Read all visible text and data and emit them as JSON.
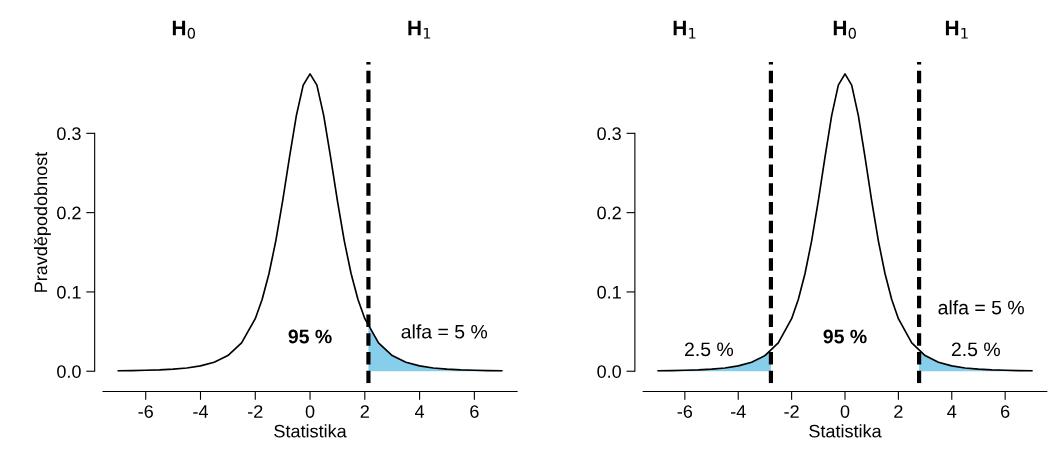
{
  "chart_data": [
    {
      "type": "line",
      "xlabel": "Statistika",
      "ylabel": "Pravděpodobnost",
      "xlim": [
        -7.56,
        7.56
      ],
      "ylim": [
        -0.015,
        0.39
      ],
      "xticks": [
        -6,
        -4,
        -2,
        0,
        2,
        4,
        6
      ],
      "yticks": [
        {
          "value": 0,
          "label": "0.0"
        },
        0.1,
        0.2,
        0.3
      ],
      "series": [
        {
          "color": "#000000",
          "x": [
            -7,
            -6.5,
            -6,
            -5.5,
            -5,
            -4.5,
            -4,
            -3.5,
            -3,
            -2.5,
            -2,
            -1.75,
            -1.5,
            -1.25,
            -1,
            -0.75,
            -0.5,
            -0.25,
            0,
            0.25,
            0.5,
            0.75,
            1,
            1.25,
            1.5,
            1.75,
            2,
            2.5,
            3,
            3.5,
            4,
            4.5,
            5,
            5.5,
            6,
            6.5,
            7
          ],
          "values": [
            0.0006,
            0.0008,
            0.0012,
            0.0017,
            0.0027,
            0.0041,
            0.0067,
            0.0113,
            0.0197,
            0.0357,
            0.0663,
            0.0905,
            0.1229,
            0.1644,
            0.2147,
            0.2699,
            0.3223,
            0.3608,
            0.375,
            0.3608,
            0.3223,
            0.2699,
            0.2147,
            0.1644,
            0.1229,
            0.0905,
            0.0663,
            0.0357,
            0.0197,
            0.0113,
            0.0067,
            0.0041,
            0.0027,
            0.0017,
            0.0012,
            0.0008,
            0.0006
          ]
        },
        {
          "type": "area",
          "color": "#87ceeb",
          "x": [
            2.132,
            2.5,
            3,
            3.5,
            4,
            4.5,
            5,
            5.5,
            6,
            6.5,
            7
          ],
          "values": [
            0.0562,
            0.0357,
            0.0197,
            0.0113,
            0.0067,
            0.0041,
            0.0027,
            0.0017,
            0.0012,
            0.0008,
            0.0006
          ]
        }
      ],
      "ref_lines": [
        {
          "axis": "x",
          "value": 2.132,
          "color": "#000000",
          "line_style": "dashed"
        }
      ],
      "annotations": [
        "95 %",
        "alfa = 5 %",
        "H$_{0}$",
        "H$_{1}$"
      ]
    },
    {
      "type": "line",
      "xlabel": "Statistika",
      "xlim": [
        -7.56,
        7.56
      ],
      "ylim": [
        -0.015,
        0.39
      ],
      "xticks": [
        -6,
        -4,
        -2,
        0,
        2,
        4,
        6
      ],
      "yticks": [
        {
          "value": 0,
          "label": "0.0"
        },
        0.1,
        0.2,
        0.3
      ],
      "series": [
        {
          "color": "#000000",
          "x": [
            -7,
            -6.5,
            -6,
            -5.5,
            -5,
            -4.5,
            -4,
            -3.5,
            -3,
            -2.5,
            -2,
            -1.75,
            -1.5,
            -1.25,
            -1,
            -0.75,
            -0.5,
            -0.25,
            0,
            0.25,
            0.5,
            0.75,
            1,
            1.25,
            1.5,
            1.75,
            2,
            2.5,
            3,
            3.5,
            4,
            4.5,
            5,
            5.5,
            6,
            6.5,
            7
          ],
          "values": [
            0.0006,
            0.0008,
            0.0012,
            0.0017,
            0.0027,
            0.0041,
            0.0067,
            0.0113,
            0.0197,
            0.0357,
            0.0663,
            0.0905,
            0.1229,
            0.1644,
            0.2147,
            0.2699,
            0.3223,
            0.3608,
            0.375,
            0.3608,
            0.3223,
            0.2699,
            0.2147,
            0.1644,
            0.1229,
            0.0905,
            0.0663,
            0.0357,
            0.0197,
            0.0113,
            0.0067,
            0.0041,
            0.0027,
            0.0017,
            0.0012,
            0.0008,
            0.0006
          ]
        },
        {
          "type": "area",
          "color": "#87ceeb",
          "x": [
            -7,
            -6.5,
            -6,
            -5.5,
            -5,
            -4.5,
            -4,
            -3.5,
            -3,
            -2.776
          ],
          "values": [
            0.0006,
            0.0008,
            0.0012,
            0.0017,
            0.0027,
            0.0041,
            0.0067,
            0.0113,
            0.0197,
            0.0256
          ]
        },
        {
          "type": "area",
          "color": "#87ceeb",
          "x": [
            2.776,
            3,
            3.5,
            4,
            4.5,
            5,
            5.5,
            6,
            6.5,
            7
          ],
          "values": [
            0.0256,
            0.0197,
            0.0113,
            0.0067,
            0.0041,
            0.0027,
            0.0017,
            0.0012,
            0.0008,
            0.0006
          ]
        }
      ],
      "ref_lines": [
        {
          "axis": "x",
          "value": -2.776,
          "color": "#000000",
          "line_style": "dashed"
        },
        {
          "axis": "x",
          "value": 2.776,
          "color": "#000000",
          "line_style": "dashed"
        }
      ],
      "annotations": [
        "2.5 %",
        "95 %",
        "alfa = 5 %",
        "2.5 %",
        "H$_{1}$",
        "H$_{0}$",
        "H$_{1}$"
      ]
    }
  ]
}
